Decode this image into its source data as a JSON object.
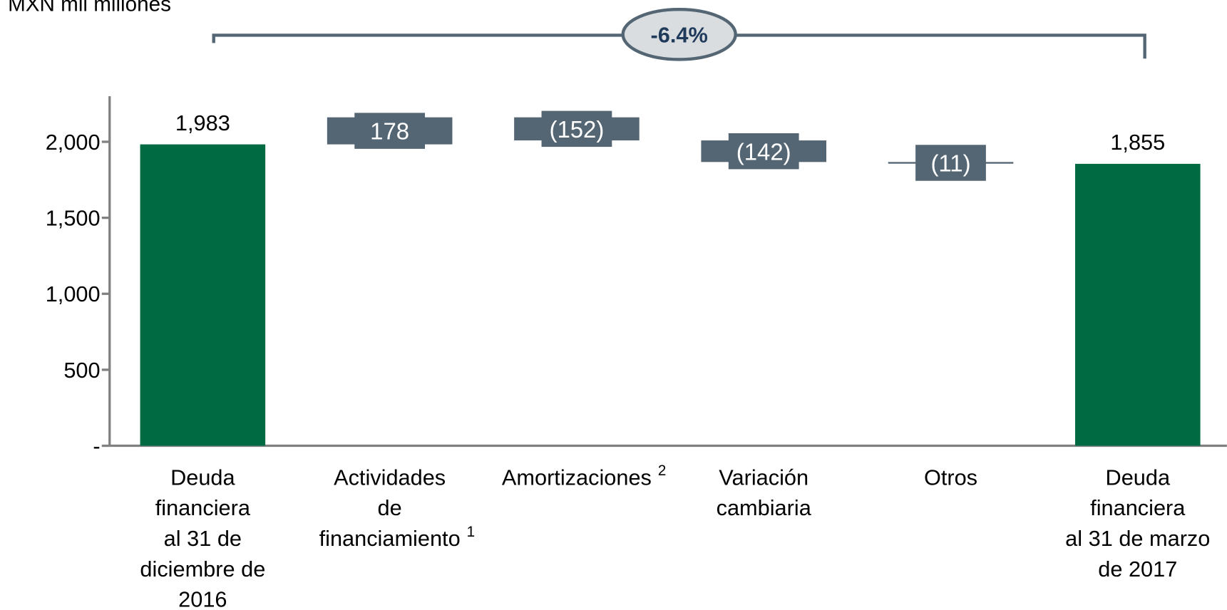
{
  "chart_data": {
    "type": "waterfall",
    "subtitle": "MXN mil millones",
    "annotation": "-6.4%",
    "categories": [
      [
        "Deuda",
        "financiera",
        "al 31 de",
        "diciembre de",
        "2016"
      ],
      [
        "Actividades",
        "de",
        "financiamiento"
      ],
      [
        "Amortizaciones"
      ],
      [
        "Variación",
        "cambiaria"
      ],
      [
        "Otros"
      ],
      [
        "Deuda",
        "financiera",
        "al 31 de marzo",
        "de 2017"
      ]
    ],
    "footnotes": [
      null,
      "1",
      "2",
      null,
      null,
      null
    ],
    "values": [
      1983,
      178,
      -152,
      -142,
      -11,
      1855
    ],
    "value_labels": [
      "1,983",
      "178",
      "(152)",
      "(142)",
      "(11)",
      "1,855"
    ],
    "is_total": [
      true,
      false,
      false,
      false,
      false,
      true
    ],
    "total_color": "#006a43",
    "change_color": "#546673",
    "ylim": [
      0,
      2300
    ],
    "yticks": [
      {
        "value": 0,
        "label": "-"
      },
      500,
      {
        "value": 1000,
        "label": "1,000"
      },
      {
        "value": 1500,
        "label": "1,500"
      },
      {
        "value": 2000,
        "label": "2,000"
      }
    ]
  }
}
